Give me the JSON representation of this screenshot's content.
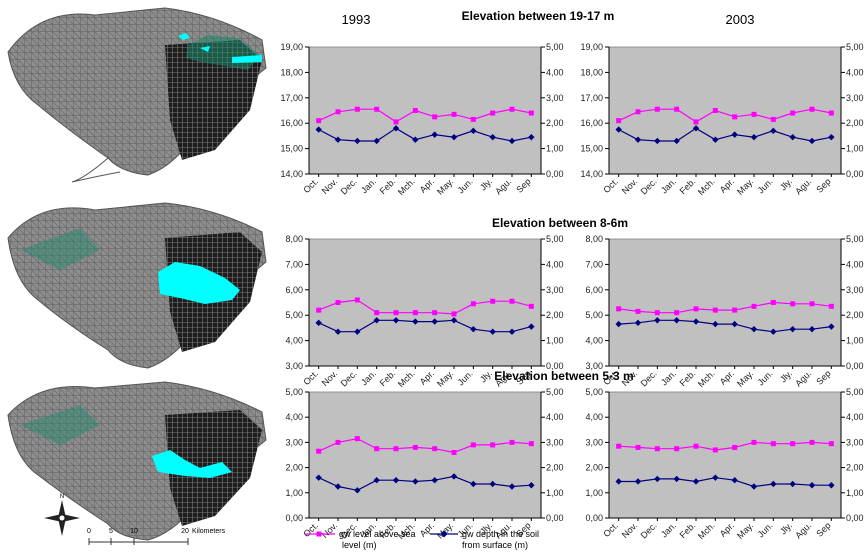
{
  "header": {
    "year_left": "1993",
    "year_right": "2003"
  },
  "row_titles": [
    "Elevation between 19-17 m",
    "Elevation between 8-6m",
    "Elevation between 5-3 m"
  ],
  "legend": {
    "level_label_1": "gw level above sea",
    "level_label_2": "level (m)",
    "depth_label_1": "gw depth in the soil",
    "depth_label_2": "from surface (m)"
  },
  "scale_bar": {
    "ticks": [
      "0",
      "5",
      "10",
      "20"
    ],
    "unit": "Kilometers",
    "north": "N"
  },
  "colors": {
    "plot_bg": "#c0c0c0",
    "level_series": "#ff00ff",
    "depth_series": "#000080",
    "map_land": "#8a8a8a",
    "map_highlight": "#00ffff"
  },
  "chart_data": [
    {
      "type": "line",
      "panel": "19-17 m, 1993",
      "categories": [
        "Oct.",
        "Nov.",
        "Dec.",
        "Jan.",
        "Feb.",
        "Mch.",
        "Apr.",
        "May.",
        "Jun.",
        "Jly.",
        "Agu.",
        "Sep"
      ],
      "ylim_left": [
        14,
        19
      ],
      "yticks_left": [
        "14,00",
        "15,00",
        "16,00",
        "17,00",
        "18,00",
        "19,00"
      ],
      "ylim_right": [
        0,
        5
      ],
      "yticks_right": [
        "0,00",
        "1,00",
        "2,00",
        "3,00",
        "4,00",
        "5,00"
      ],
      "series": [
        {
          "name": "gw level above sea level (m)",
          "axis": "left",
          "values": [
            16.1,
            16.45,
            16.55,
            16.55,
            16.05,
            16.5,
            16.25,
            16.35,
            16.15,
            16.4,
            16.55,
            16.4
          ]
        },
        {
          "name": "gw depth in the soil from surface (m)",
          "axis": "right",
          "values": [
            1.75,
            1.35,
            1.3,
            1.3,
            1.8,
            1.35,
            1.55,
            1.45,
            1.7,
            1.45,
            1.3,
            1.45
          ]
        }
      ]
    },
    {
      "type": "line",
      "panel": "19-17 m, 2003",
      "categories": [
        "Oct.",
        "Nov.",
        "Dec.",
        "Jan.",
        "Feb.",
        "Mch.",
        "Apr.",
        "May.",
        "Jun.",
        "Jly.",
        "Agu.",
        "Sep"
      ],
      "ylim_left": [
        14,
        19
      ],
      "yticks_left": [
        "14,00",
        "15,00",
        "16,00",
        "17,00",
        "18,00",
        "19,00"
      ],
      "ylim_right": [
        0,
        5
      ],
      "yticks_right": [
        "0,00",
        "1,00",
        "2,00",
        "3,00",
        "4,00",
        "5,00"
      ],
      "series": [
        {
          "name": "gw level above sea level (m)",
          "axis": "left",
          "values": [
            16.1,
            16.45,
            16.55,
            16.55,
            16.05,
            16.5,
            16.25,
            16.35,
            16.15,
            16.4,
            16.55,
            16.4
          ]
        },
        {
          "name": "gw depth in the soil from surface (m)",
          "axis": "right",
          "values": [
            1.75,
            1.35,
            1.3,
            1.3,
            1.8,
            1.35,
            1.55,
            1.45,
            1.7,
            1.45,
            1.3,
            1.45
          ]
        }
      ]
    },
    {
      "type": "line",
      "panel": "8-6 m, 1993",
      "categories": [
        "Oct.",
        "Nov.",
        "Dec.",
        "Jan.",
        "Feb.",
        "Mch.",
        "Apr.",
        "May.",
        "Jun.",
        "Jly.",
        "Agu.",
        "Sep"
      ],
      "ylim_left": [
        3,
        8
      ],
      "yticks_left": [
        "3,00",
        "4,00",
        "5,00",
        "6,00",
        "7,00",
        "8,00"
      ],
      "ylim_right": [
        0,
        5
      ],
      "yticks_right": [
        "0,00",
        "1,00",
        "2,00",
        "3,00",
        "4,00",
        "5,00"
      ],
      "series": [
        {
          "name": "gw level above sea level (m)",
          "axis": "left",
          "values": [
            5.2,
            5.5,
            5.6,
            5.1,
            5.1,
            5.1,
            5.1,
            5.05,
            5.45,
            5.55,
            5.55,
            5.35
          ]
        },
        {
          "name": "gw depth in the soil from surface (m)",
          "axis": "right",
          "values": [
            1.7,
            1.35,
            1.35,
            1.8,
            1.8,
            1.75,
            1.75,
            1.8,
            1.45,
            1.35,
            1.35,
            1.55
          ]
        }
      ]
    },
    {
      "type": "line",
      "panel": "8-6 m, 2003",
      "categories": [
        "Oct.",
        "Nov.",
        "Dec.",
        "Jan.",
        "Feb.",
        "Mch.",
        "Apr.",
        "May.",
        "Jun.",
        "Jly.",
        "Agu.",
        "Sep"
      ],
      "ylim_left": [
        3,
        8
      ],
      "yticks_left": [
        "3,00",
        "4,00",
        "5,00",
        "6,00",
        "7,00",
        "8,00"
      ],
      "ylim_right": [
        0,
        5
      ],
      "yticks_right": [
        "0,00",
        "1,00",
        "2,00",
        "3,00",
        "4,00",
        "5,00"
      ],
      "series": [
        {
          "name": "gw level above sea level (m)",
          "axis": "left",
          "values": [
            5.25,
            5.15,
            5.1,
            5.1,
            5.25,
            5.2,
            5.2,
            5.35,
            5.5,
            5.45,
            5.45,
            5.35
          ]
        },
        {
          "name": "gw depth in the soil from surface (m)",
          "axis": "right",
          "values": [
            1.65,
            1.7,
            1.8,
            1.8,
            1.75,
            1.65,
            1.65,
            1.45,
            1.35,
            1.45,
            1.45,
            1.55
          ]
        }
      ]
    },
    {
      "type": "line",
      "panel": "5-3 m, 1993",
      "categories": [
        "Oct.",
        "Nov.",
        "Dec.",
        "Jan.",
        "Feb.",
        "Mch.",
        "Apr.",
        "May.",
        "Jun.",
        "Jly.",
        "Agu.",
        "Sep"
      ],
      "ylim_left": [
        0,
        5
      ],
      "yticks_left": [
        "0,00",
        "1,00",
        "2,00",
        "3,00",
        "4,00",
        "5,00"
      ],
      "ylim_right": [
        0,
        5
      ],
      "yticks_right": [
        "0,00",
        "1,00",
        "2,00",
        "3,00",
        "4,00",
        "5,00"
      ],
      "series": [
        {
          "name": "gw level above sea level (m)",
          "axis": "left",
          "values": [
            2.65,
            3.0,
            3.15,
            2.75,
            2.75,
            2.8,
            2.75,
            2.6,
            2.9,
            2.9,
            3.0,
            2.95
          ]
        },
        {
          "name": "gw depth in the soil from surface (m)",
          "axis": "right",
          "values": [
            1.6,
            1.25,
            1.1,
            1.5,
            1.5,
            1.45,
            1.5,
            1.65,
            1.35,
            1.35,
            1.25,
            1.3
          ]
        }
      ]
    },
    {
      "type": "line",
      "panel": "5-3 m, 2003",
      "categories": [
        "Oct.",
        "Nov.",
        "Dec.",
        "Jan.",
        "Feb.",
        "Mch.",
        "Apr.",
        "May.",
        "Jun.",
        "Jly.",
        "Agu.",
        "Sep"
      ],
      "ylim_left": [
        0,
        5
      ],
      "yticks_left": [
        "0,00",
        "1,00",
        "2,00",
        "3,00",
        "4,00",
        "5,00"
      ],
      "ylim_right": [
        0,
        5
      ],
      "yticks_right": [
        "0,00",
        "1,00",
        "2,00",
        "3,00",
        "4,00",
        "5,00"
      ],
      "series": [
        {
          "name": "gw level above sea level (m)",
          "axis": "left",
          "values": [
            2.85,
            2.8,
            2.75,
            2.75,
            2.85,
            2.7,
            2.8,
            3.0,
            2.95,
            2.95,
            3.0,
            2.95
          ]
        },
        {
          "name": "gw depth in the soil from surface (m)",
          "axis": "right",
          "values": [
            1.45,
            1.45,
            1.55,
            1.55,
            1.45,
            1.6,
            1.5,
            1.25,
            1.35,
            1.35,
            1.3,
            1.3
          ]
        }
      ]
    }
  ]
}
